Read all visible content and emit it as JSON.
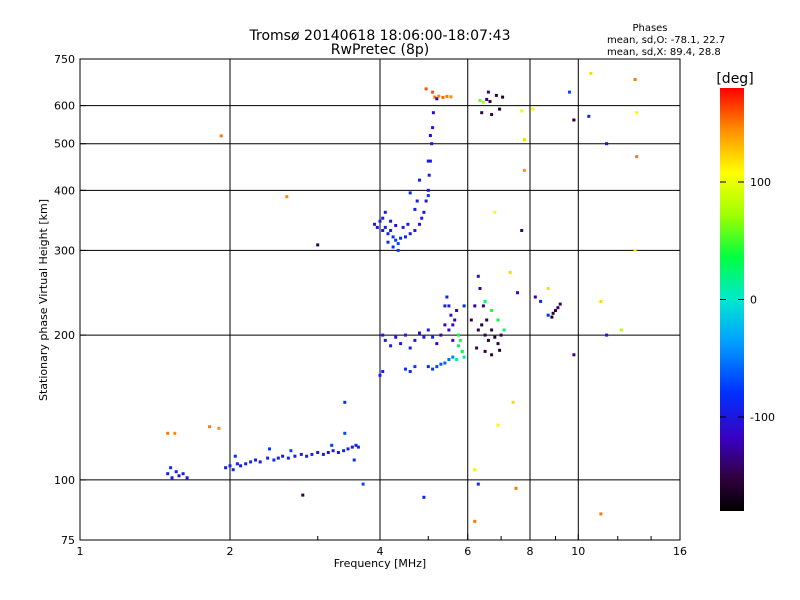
{
  "chart_data": {
    "type": "scatter",
    "title": "Tromsø 20140618 18:06:00-18:07:43",
    "subtitle": "RwPretec (8p)",
    "xlabel": "Frequency [MHz]",
    "ylabel": "Stationary phase Virtual Height [km]",
    "xscale": "log",
    "yscale": "log",
    "xlim": [
      1,
      16
    ],
    "ylim": [
      75,
      750
    ],
    "x_ticks": [
      1,
      2,
      4,
      6,
      8,
      10,
      16
    ],
    "x_minor_ticks": [
      3,
      5,
      7,
      9,
      12,
      14
    ],
    "y_ticks": [
      75,
      100,
      200,
      300,
      400,
      500,
      600,
      750
    ],
    "x_grid": [
      2,
      4,
      6,
      8,
      10
    ],
    "y_grid": [
      100,
      200,
      300,
      400,
      500,
      600
    ],
    "grid": true,
    "stats": {
      "heading": "Phases",
      "line_o": "mean, sd,O: -78.1, 22.7",
      "line_x": "mean, sd,X:  89.4, 28.8"
    },
    "colorbar": {
      "label": "[deg]",
      "range": [
        -180,
        180
      ],
      "ticks": [
        100,
        0,
        -100
      ]
    },
    "series": [
      {
        "points": [
          [
            1.5,
            103,
            -95
          ],
          [
            1.53,
            101,
            -100
          ],
          [
            1.56,
            104,
            -90
          ],
          [
            1.58,
            102,
            -105
          ],
          [
            1.61,
            103,
            -95
          ],
          [
            1.64,
            101,
            -100
          ],
          [
            1.52,
            106,
            -80
          ],
          [
            1.96,
            106,
            -90
          ],
          [
            2.0,
            107,
            -95
          ],
          [
            2.03,
            105,
            -85
          ],
          [
            2.07,
            108,
            -90
          ],
          [
            2.1,
            107,
            -100
          ],
          [
            2.15,
            108,
            -95
          ],
          [
            2.2,
            109,
            -90
          ],
          [
            2.25,
            110,
            -95
          ],
          [
            2.3,
            109,
            -100
          ],
          [
            2.38,
            111,
            -90
          ],
          [
            2.45,
            110,
            -85
          ],
          [
            2.5,
            111,
            -95
          ],
          [
            2.55,
            112,
            -100
          ],
          [
            2.62,
            111,
            -90
          ],
          [
            2.7,
            112,
            -95
          ],
          [
            2.78,
            113,
            -100
          ],
          [
            2.85,
            112,
            -95
          ],
          [
            2.92,
            113,
            -90
          ],
          [
            3.0,
            114,
            -100
          ],
          [
            3.08,
            113,
            -95
          ],
          [
            3.15,
            114,
            -105
          ],
          [
            3.22,
            115,
            -95
          ],
          [
            3.3,
            114,
            -100
          ],
          [
            3.38,
            115,
            -90
          ],
          [
            3.45,
            116,
            -95
          ],
          [
            3.52,
            117,
            -100
          ],
          [
            3.58,
            118,
            -90
          ],
          [
            3.62,
            117,
            -85
          ],
          [
            2.05,
            112,
            -80
          ],
          [
            3.4,
            125,
            -70
          ],
          [
            3.55,
            110,
            -80
          ],
          [
            3.2,
            118,
            -75
          ],
          [
            2.4,
            116,
            -78
          ],
          [
            2.65,
            115,
            -72
          ],
          [
            3.9,
            340,
            -100
          ],
          [
            3.95,
            335,
            -105
          ],
          [
            4.0,
            345,
            -95
          ],
          [
            4.05,
            330,
            -100
          ],
          [
            4.1,
            335,
            -95
          ],
          [
            4.15,
            325,
            -90
          ],
          [
            4.2,
            330,
            -85
          ],
          [
            4.25,
            320,
            -80
          ],
          [
            4.3,
            315,
            -75
          ],
          [
            4.35,
            310,
            -70
          ],
          [
            4.4,
            318,
            -80
          ],
          [
            4.5,
            320,
            -90
          ],
          [
            4.6,
            325,
            -95
          ],
          [
            4.7,
            330,
            -100
          ],
          [
            4.8,
            340,
            -100
          ],
          [
            4.85,
            350,
            -95
          ],
          [
            4.9,
            360,
            -100
          ],
          [
            4.95,
            380,
            -105
          ],
          [
            5.0,
            400,
            -100
          ],
          [
            5.02,
            430,
            -95
          ],
          [
            5.05,
            460,
            -100
          ],
          [
            5.08,
            500,
            -105
          ],
          [
            5.1,
            540,
            -100
          ],
          [
            5.12,
            580,
            -110
          ],
          [
            4.05,
            350,
            -100
          ],
          [
            4.1,
            360,
            -95
          ],
          [
            4.2,
            345,
            -100
          ],
          [
            4.3,
            338,
            -105
          ],
          [
            4.45,
            335,
            -95
          ],
          [
            4.55,
            340,
            -100
          ],
          [
            4.25,
            305,
            -80
          ],
          [
            4.35,
            300,
            -75
          ],
          [
            4.15,
            312,
            -85
          ],
          [
            4.7,
            365,
            -95
          ],
          [
            4.75,
            380,
            -100
          ],
          [
            5.0,
            460,
            -95
          ],
          [
            4.8,
            420,
            -90
          ],
          [
            5.05,
            520,
            -110
          ],
          [
            5.0,
            390,
            -75
          ],
          [
            4.6,
            395,
            -80
          ],
          [
            5.15,
            625,
            150
          ],
          [
            5.25,
            628,
            145
          ],
          [
            5.35,
            624,
            155
          ],
          [
            5.45,
            627,
            150
          ],
          [
            5.55,
            626,
            145
          ],
          [
            5.1,
            640,
            160
          ],
          [
            6.35,
            615,
            60
          ],
          [
            6.45,
            610,
            80
          ],
          [
            6.55,
            618,
            -140
          ],
          [
            6.65,
            612,
            -150
          ],
          [
            6.85,
            630,
            -155
          ],
          [
            7.05,
            625,
            -160
          ],
          [
            6.4,
            580,
            -150
          ],
          [
            6.7,
            575,
            -145
          ],
          [
            6.95,
            590,
            -160
          ],
          [
            6.6,
            640,
            -130
          ],
          [
            5.2,
            620,
            -120
          ],
          [
            4.05,
            200,
            -100
          ],
          [
            4.1,
            195,
            -95
          ],
          [
            4.2,
            190,
            -100
          ],
          [
            4.3,
            198,
            -105
          ],
          [
            4.4,
            192,
            -95
          ],
          [
            4.5,
            200,
            -100
          ],
          [
            4.6,
            188,
            -90
          ],
          [
            4.7,
            195,
            -100
          ],
          [
            4.8,
            202,
            -105
          ],
          [
            4.9,
            198,
            -100
          ],
          [
            5.0,
            205,
            -95
          ],
          [
            5.1,
            198,
            -90
          ],
          [
            5.2,
            192,
            -110
          ],
          [
            5.3,
            200,
            -120
          ],
          [
            5.4,
            210,
            -115
          ],
          [
            5.5,
            205,
            -110
          ],
          [
            5.6,
            195,
            -100
          ],
          [
            5.0,
            172,
            -80
          ],
          [
            5.1,
            170,
            -75
          ],
          [
            5.2,
            172,
            -70
          ],
          [
            5.3,
            174,
            -65
          ],
          [
            5.4,
            175,
            -60
          ],
          [
            5.5,
            178,
            -55
          ],
          [
            5.6,
            180,
            -50
          ],
          [
            4.5,
            170,
            -80
          ],
          [
            4.6,
            168,
            -85
          ],
          [
            4.7,
            172,
            -75
          ],
          [
            4.05,
            168,
            -90
          ],
          [
            4.0,
            165,
            -95
          ],
          [
            5.45,
            240,
            -90
          ],
          [
            5.5,
            230,
            -95
          ],
          [
            5.55,
            220,
            -100
          ],
          [
            5.6,
            210,
            -110
          ],
          [
            5.65,
            215,
            -120
          ],
          [
            5.7,
            225,
            -115
          ],
          [
            5.75,
            200,
            30
          ],
          [
            5.8,
            195,
            40
          ],
          [
            5.85,
            185,
            35
          ],
          [
            5.9,
            180,
            20
          ],
          [
            5.7,
            178,
            10
          ],
          [
            5.75,
            190,
            25
          ],
          [
            6.3,
            205,
            -150
          ],
          [
            6.4,
            210,
            -160
          ],
          [
            6.5,
            200,
            -145
          ],
          [
            6.6,
            195,
            -155
          ],
          [
            6.7,
            205,
            -150
          ],
          [
            6.8,
            198,
            -160
          ],
          [
            6.9,
            192,
            -150
          ],
          [
            7.0,
            200,
            -145
          ],
          [
            6.45,
            230,
            -140
          ],
          [
            6.35,
            250,
            -130
          ],
          [
            6.3,
            265,
            -100
          ],
          [
            6.55,
            215,
            -145
          ],
          [
            6.1,
            215,
            -150
          ],
          [
            6.2,
            230,
            -130
          ],
          [
            6.5,
            235,
            30
          ],
          [
            6.7,
            225,
            40
          ],
          [
            6.9,
            215,
            35
          ],
          [
            7.1,
            205,
            25
          ],
          [
            6.25,
            188,
            -140
          ],
          [
            6.5,
            185,
            -150
          ],
          [
            6.7,
            182,
            -155
          ],
          [
            6.95,
            186,
            -160
          ],
          [
            8.9,
            222,
            -150
          ],
          [
            9.0,
            225,
            -155
          ],
          [
            9.1,
            228,
            -145
          ],
          [
            8.85,
            218,
            -160
          ],
          [
            9.2,
            232,
            -140
          ],
          [
            8.2,
            240,
            -130
          ],
          [
            9.8,
            182,
            -130
          ],
          [
            8.4,
            235,
            -90
          ],
          [
            8.7,
            220,
            -80
          ],
          [
            1.5,
            125,
            150
          ],
          [
            1.55,
            125,
            145
          ],
          [
            1.82,
            129,
            150
          ],
          [
            1.9,
            128,
            145
          ],
          [
            1.92,
            519,
            150
          ],
          [
            2.6,
            388,
            145
          ],
          [
            3.0,
            308,
            -150
          ],
          [
            3.4,
            145,
            -80
          ],
          [
            4.95,
            650,
            160
          ],
          [
            5.4,
            230,
            -90
          ],
          [
            6.2,
            82,
            150
          ],
          [
            6.8,
            360,
            110
          ],
          [
            7.3,
            270,
            120
          ],
          [
            7.7,
            585,
            100
          ],
          [
            7.8,
            510,
            120
          ],
          [
            7.8,
            440,
            140
          ],
          [
            8.1,
            590,
            110
          ],
          [
            9.8,
            560,
            -160
          ],
          [
            10.6,
            700,
            120
          ],
          [
            11.1,
            235,
            120
          ],
          [
            11.4,
            500,
            -110
          ],
          [
            11.4,
            200,
            -100
          ],
          [
            11.1,
            85,
            150
          ],
          [
            13.0,
            680,
            150
          ],
          [
            12.2,
            205,
            80
          ],
          [
            13.1,
            580,
            110
          ],
          [
            13.1,
            470,
            150
          ],
          [
            13.0,
            300,
            110
          ],
          [
            2.8,
            93,
            -150
          ],
          [
            3.7,
            98,
            -70
          ],
          [
            4.9,
            92,
            -90
          ],
          [
            6.3,
            98,
            -80
          ],
          [
            7.5,
            96,
            150
          ],
          [
            5.9,
            230,
            -80
          ],
          [
            9.6,
            640,
            -70
          ],
          [
            7.7,
            330,
            -140
          ],
          [
            7.55,
            245,
            -120
          ],
          [
            8.7,
            250,
            120
          ],
          [
            10.5,
            570,
            -90
          ],
          [
            6.2,
            105,
            100
          ],
          [
            6.9,
            130,
            110
          ],
          [
            7.4,
            145,
            120
          ]
        ]
      }
    ]
  }
}
